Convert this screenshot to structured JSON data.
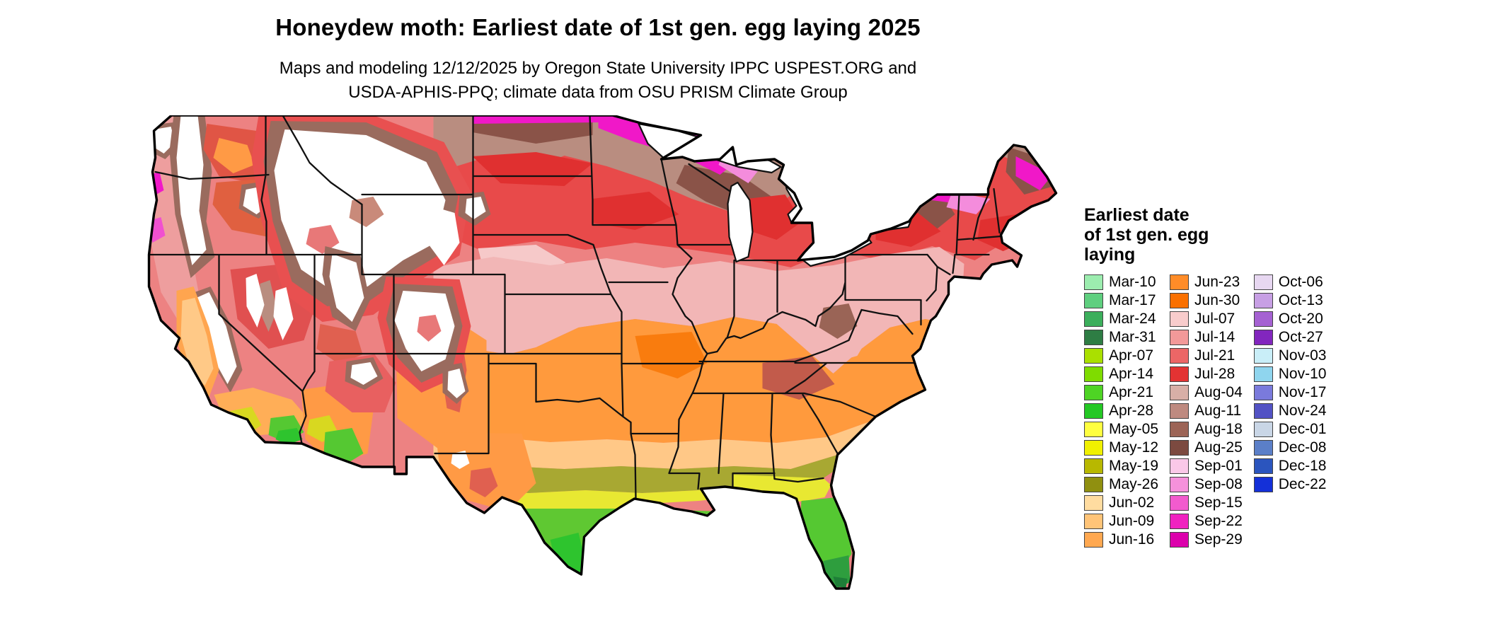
{
  "header": {
    "title": "Honeydew moth: Earliest date of 1st gen. egg laying 2025",
    "subtitle_line1": "Maps and modeling 12/12/2025 by Oregon State University IPPC USPEST.ORG and",
    "subtitle_line2": "USDA-APHIS-PPQ; climate data from OSU PRISM Climate Group"
  },
  "legend": {
    "title_line1": "Earliest date",
    "title_line2": "of 1st gen. egg",
    "title_line3": "laying",
    "columns": [
      {
        "entries": [
          {
            "label": "Mar-10",
            "color": "#9CEDAF"
          },
          {
            "label": "Mar-17",
            "color": "#5FCF7F"
          },
          {
            "label": "Mar-24",
            "color": "#3CAF5C"
          },
          {
            "label": "Mar-31",
            "color": "#2E7D44"
          },
          {
            "label": "Apr-07",
            "color": "#AAE000"
          },
          {
            "label": "Apr-14",
            "color": "#7FDC00"
          },
          {
            "label": "Apr-21",
            "color": "#4ED424"
          },
          {
            "label": "Apr-28",
            "color": "#24C824"
          },
          {
            "label": "May-05",
            "color": "#FFFF40"
          },
          {
            "label": "May-12",
            "color": "#F0F000"
          },
          {
            "label": "May-19",
            "color": "#B8B800"
          },
          {
            "label": "May-26",
            "color": "#909010"
          },
          {
            "label": "Jun-02",
            "color": "#FFDCA0"
          },
          {
            "label": "Jun-09",
            "color": "#FFC478"
          },
          {
            "label": "Jun-16",
            "color": "#FFA850"
          }
        ]
      },
      {
        "entries": [
          {
            "label": "Jun-23",
            "color": "#FF8C28"
          },
          {
            "label": "Jun-30",
            "color": "#FA7000"
          },
          {
            "label": "Jul-07",
            "color": "#F8CCCC"
          },
          {
            "label": "Jul-14",
            "color": "#F29999"
          },
          {
            "label": "Jul-21",
            "color": "#EC6666"
          },
          {
            "label": "Jul-28",
            "color": "#E33333"
          },
          {
            "label": "Aug-04",
            "color": "#D8AFA7"
          },
          {
            "label": "Aug-11",
            "color": "#BE8A80"
          },
          {
            "label": "Aug-18",
            "color": "#9C6456"
          },
          {
            "label": "Aug-25",
            "color": "#7C4A40"
          },
          {
            "label": "Sep-01",
            "color": "#FAC8E8"
          },
          {
            "label": "Sep-08",
            "color": "#F591DB"
          },
          {
            "label": "Sep-15",
            "color": "#F25BCE"
          },
          {
            "label": "Sep-22",
            "color": "#F022C0"
          },
          {
            "label": "Sep-29",
            "color": "#DC00AC"
          }
        ]
      },
      {
        "entries": [
          {
            "label": "Oct-06",
            "color": "#E7D7F1"
          },
          {
            "label": "Oct-13",
            "color": "#C79FE4"
          },
          {
            "label": "Oct-20",
            "color": "#A561D2"
          },
          {
            "label": "Oct-27",
            "color": "#8226BE"
          },
          {
            "label": "Nov-03",
            "color": "#C9EEF8"
          },
          {
            "label": "Nov-10",
            "color": "#8FD5EE"
          },
          {
            "label": "Nov-17",
            "color": "#7A7ADC"
          },
          {
            "label": "Nov-24",
            "color": "#5252C4"
          },
          {
            "label": "Dec-01",
            "color": "#C9D6E6"
          },
          {
            "label": "Dec-08",
            "color": "#5B7FC8"
          },
          {
            "label": "Dec-18",
            "color": "#2B55BE"
          },
          {
            "label": "Dec-22",
            "color": "#1430D8"
          }
        ]
      }
    ]
  }
}
